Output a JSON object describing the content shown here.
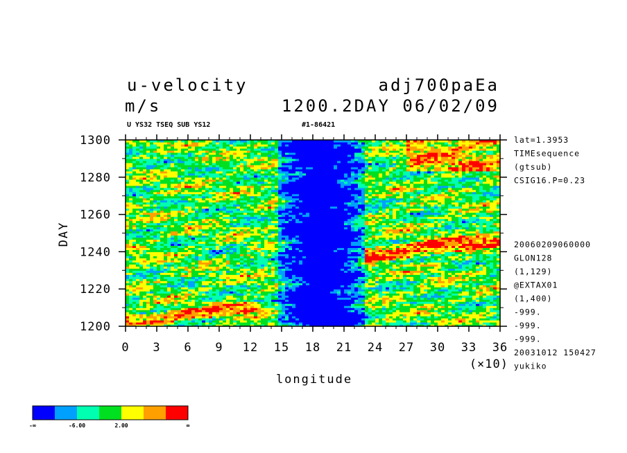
{
  "header": {
    "title_left": "u-velocity",
    "title_right": "adj700paEa",
    "units": "m/s",
    "time_label": "1200.2DAY 06/02/09",
    "sub_left": "U YS32 TSEQ SUB YS12",
    "sub_right": "#1-86421"
  },
  "side_info": {
    "top": [
      "lat=1.3953",
      "TIMEsequence",
      "(gtsub)",
      "CSIG16.P=0.23"
    ],
    "bottom": [
      "20060209060000",
      "GLON128",
      "(1,129)",
      "@EXTAX01",
      "(1,400)",
      "-999.",
      "-999.",
      "-999.",
      "20031012 150427",
      "yukiko"
    ]
  },
  "colorbar": {
    "colors": [
      "#0000ff",
      "#00a0ff",
      "#00ffb0",
      "#00e020",
      "#ffff00",
      "#ffa000",
      "#ff0000"
    ],
    "labels": [
      "-∞",
      "-6.00",
      "2.00",
      "∞"
    ]
  },
  "chart_data": {
    "type": "heatmap",
    "xlabel": "longitude",
    "ylabel": "DAY",
    "x_multiplier_label": "(×10)",
    "xlim": [
      0,
      36
    ],
    "ylim": [
      1200,
      1300
    ],
    "x_ticks": [
      0,
      3,
      6,
      9,
      12,
      15,
      18,
      21,
      24,
      27,
      30,
      33,
      36
    ],
    "y_ticks": [
      1200,
      1220,
      1240,
      1260,
      1280,
      1300
    ],
    "zones": [
      {
        "from": 0,
        "to": 14,
        "character": "mixed, eastward-tilted red streaks"
      },
      {
        "from": 14,
        "to": 23,
        "character": "predominantly blue (strong easterly)"
      },
      {
        "from": 23,
        "to": 36,
        "character": "mixed, red bands near 1240-1250 and 1285-1300"
      }
    ]
  }
}
